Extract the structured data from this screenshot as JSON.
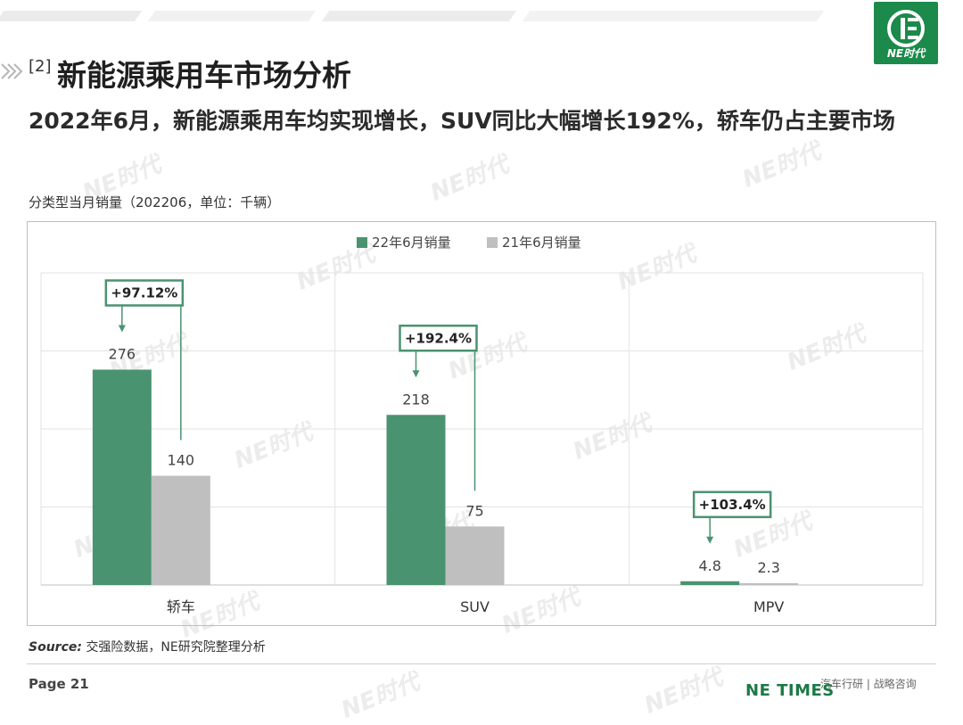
{
  "header": {
    "section_tag": "[2]",
    "title": "新能源乘用车市场分析",
    "subtitle": "2022年6月，新能源乘用车均实现增长，SUV同比大幅增长192%，轿车仍占主要市场"
  },
  "logo": {
    "text": "NE时代"
  },
  "chart_caption": "分类型当月销量（202206，单位：千辆）",
  "chart_data": {
    "type": "bar",
    "categories": [
      "轿车",
      "SUV",
      "MPV"
    ],
    "series": [
      {
        "name": "22年6月销量",
        "values": [
          276,
          218,
          4.8
        ],
        "color": "#4a9370"
      },
      {
        "name": "21年6月销量",
        "values": [
          140,
          75,
          2.3
        ],
        "color": "#bfbfbf"
      }
    ],
    "value_labels": [
      [
        "276",
        "218",
        "4.8"
      ],
      [
        "140",
        "75",
        "2.3"
      ]
    ],
    "growth_labels": [
      "+97.12%",
      "+192.4%",
      "+103.4%"
    ],
    "ylim": [
      0,
      400
    ],
    "grid": true,
    "legend_position": "top-center",
    "accent_color": "#4a9370"
  },
  "source": {
    "label": "Source:",
    "text": "交强险数据，NE研究院整理分析"
  },
  "footer": {
    "page": "Page 21",
    "brand": "NE TIMES",
    "wechat": "汽车行研 | 战略咨询"
  },
  "watermark": "NE时代"
}
